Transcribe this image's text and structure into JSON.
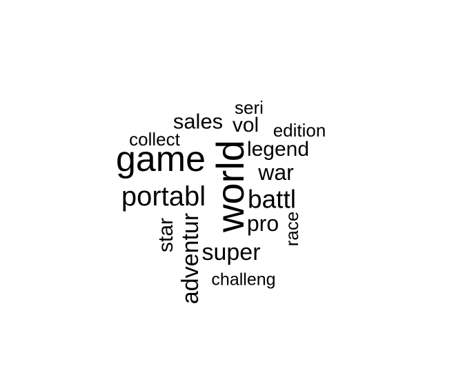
{
  "word_cloud": {
    "text_color": "#000000",
    "background": "#ffffff",
    "words": {
      "seri": "seri",
      "sales": "sales",
      "vol": "vol",
      "edition": "edition",
      "collect": "collect",
      "game": "game",
      "world": "world",
      "legend": "legend",
      "war": "war",
      "portabl": "portabl",
      "battl": "battl",
      "star": "star",
      "adventur": "adventur",
      "pro": "pro",
      "race": "race",
      "super": "super",
      "challeng": "challeng"
    }
  }
}
